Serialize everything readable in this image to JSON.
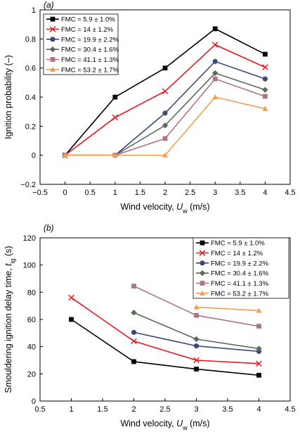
{
  "chart_data": [
    {
      "type": "line",
      "panel_label": "(a)",
      "xlabel_main": "Wind velocity, ",
      "xlabel_var": "U",
      "xlabel_sub": "w",
      "xlabel_unit": " (m/s)",
      "ylabel": "Ignition probability (–)",
      "xlim": [
        -0.5,
        4.5
      ],
      "ylim": [
        -0.2,
        1.0
      ],
      "xticks": [
        -0.5,
        0,
        0.5,
        1,
        1.5,
        2,
        2.5,
        3,
        3.5,
        4,
        4.5
      ],
      "xtick_labels": [
        "−0.5",
        "0",
        "0.5",
        "1",
        "1.5",
        "2",
        "2.5",
        "3",
        "3.5",
        "4",
        "4.5"
      ],
      "yticks": [
        -0.2,
        0,
        0.2,
        0.4,
        0.6,
        0.8,
        1
      ],
      "ytick_labels": [
        "−0.2",
        "0",
        "0.2",
        "0.4",
        "0.6",
        "0.8",
        "1"
      ],
      "legend_position": "top-left",
      "grid": false,
      "series": [
        {
          "name": "FMC = 5.9 ± 1.0%",
          "color": "#000000",
          "marker": "square",
          "x": [
            0,
            1,
            2,
            3,
            4
          ],
          "y": [
            0,
            0.4,
            0.6,
            0.87,
            0.695
          ]
        },
        {
          "name": "FMC = 14 ± 1.2%",
          "color": "#e8141e",
          "marker": "x",
          "x": [
            0,
            1,
            2,
            3,
            4
          ],
          "y": [
            0,
            0.26,
            0.44,
            0.76,
            0.605
          ]
        },
        {
          "name": "FMC = 19.9 ± 2.2%",
          "color": "#3b4a7a",
          "marker": "circle",
          "x": [
            0,
            1,
            2,
            3,
            4
          ],
          "y": [
            0,
            0,
            0.29,
            0.645,
            0.525
          ]
        },
        {
          "name": "FMC = 30.4 ± 1.6%",
          "color": "#596b59",
          "marker": "diamond",
          "x": [
            0,
            1,
            2,
            3,
            4
          ],
          "y": [
            0,
            0,
            0.205,
            0.565,
            0.45
          ]
        },
        {
          "name": "FMC = 41.1 ± 1.3%",
          "color": "#b07487",
          "marker": "square",
          "x": [
            0,
            1,
            2,
            3,
            4
          ],
          "y": [
            0,
            0,
            0.115,
            0.525,
            0.405
          ]
        },
        {
          "name": "FMC = 53.2 ± 1.7%",
          "color": "#f0a050",
          "marker": "triangle",
          "x": [
            0,
            1,
            2,
            3,
            4
          ],
          "y": [
            0,
            0,
            0,
            0.4,
            0.32
          ]
        }
      ]
    },
    {
      "type": "line",
      "panel_label": "(b)",
      "xlabel_main": "Wind velocity, ",
      "xlabel_var": "U",
      "xlabel_sub": "w",
      "xlabel_unit": " (m/s)",
      "ylabel_main": "Smouldering ignition delay time, ",
      "ylabel_var": "t",
      "ylabel_sub": "ig",
      "ylabel_unit": " (s)",
      "xlim": [
        0.5,
        4.5
      ],
      "ylim": [
        0,
        120
      ],
      "xticks": [
        0.5,
        1,
        1.5,
        2,
        2.5,
        3,
        3.5,
        4,
        4.5
      ],
      "xtick_labels": [
        "0.5",
        "1",
        "1.5",
        "2",
        "2.5",
        "3",
        "3.5",
        "4",
        "4.5"
      ],
      "yticks": [
        0,
        20,
        40,
        60,
        80,
        100,
        120
      ],
      "ytick_labels": [
        "0",
        "20",
        "40",
        "60",
        "80",
        "100",
        "120"
      ],
      "legend_position": "top-right",
      "grid": false,
      "series": [
        {
          "name": "FMC = 5.9 ± 1.0%",
          "color": "#000000",
          "marker": "square",
          "x": [
            1,
            2,
            3,
            4
          ],
          "y": [
            60,
            29,
            23.5,
            19
          ]
        },
        {
          "name": "FMC = 14 ± 1.2%",
          "color": "#e8141e",
          "marker": "x",
          "x": [
            1,
            2,
            3,
            4
          ],
          "y": [
            76,
            44,
            30,
            27.5
          ]
        },
        {
          "name": "FMC = 19.9 ± 2.2%",
          "color": "#3b4a7a",
          "marker": "circle",
          "x": [
            2,
            3,
            4
          ],
          "y": [
            50.5,
            40.5,
            36.5
          ]
        },
        {
          "name": "FMC = 30.4 ± 1.6%",
          "color": "#596b59",
          "marker": "diamond",
          "x": [
            2,
            3,
            4
          ],
          "y": [
            65,
            45.5,
            38.5
          ]
        },
        {
          "name": "FMC = 41.1 ± 1.3%",
          "color": "#b07487",
          "marker": "square",
          "x": [
            2,
            3,
            4
          ],
          "y": [
            84.5,
            63,
            55
          ]
        },
        {
          "name": "FMC = 53.2 ± 1.7%",
          "color": "#f0a050",
          "marker": "triangle",
          "x": [
            3,
            4
          ],
          "y": [
            69,
            66.5
          ]
        }
      ]
    }
  ]
}
